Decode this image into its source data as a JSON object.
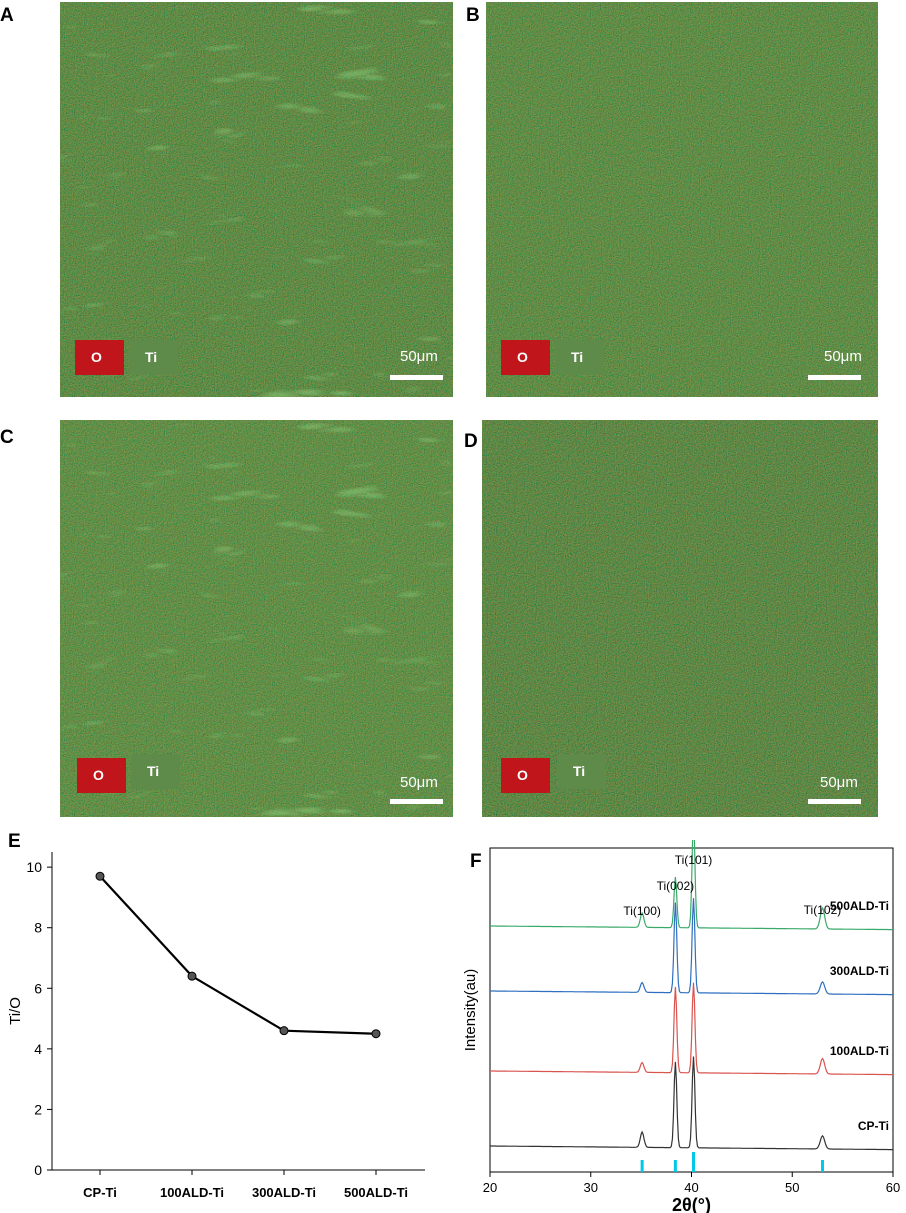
{
  "panels": {
    "A": {
      "letter": "A",
      "legend_o": "O",
      "legend_ti": "Ti",
      "scale": "50μm"
    },
    "B": {
      "letter": "B",
      "legend_o": "O",
      "legend_ti": "Ti",
      "scale": "50μm"
    },
    "C": {
      "letter": "C",
      "legend_o": "O",
      "legend_ti": "Ti",
      "scale": "50μm"
    },
    "D": {
      "letter": "D",
      "legend_o": "O",
      "legend_ti": "Ti",
      "scale": "50μm"
    },
    "E": {
      "letter": "E"
    },
    "F": {
      "letter": "F"
    }
  },
  "colors": {
    "oxygen": "#c0161b",
    "titanium": "#5e8a4a",
    "map_base": "#2f6a22",
    "cp_ti": "#333333",
    "ald100": "#d9534f",
    "ald300": "#2f6fbf",
    "ald500": "#3aaa6a",
    "reference": "#00c8e8"
  },
  "chart_data": [
    {
      "type": "line",
      "categories": [
        "CP-Ti",
        "100ALD-Ti",
        "300ALD-Ti",
        "500ALD-Ti"
      ],
      "values": [
        9.7,
        6.4,
        4.6,
        4.5
      ],
      "ylabel": "Ti/O",
      "xlabel": "",
      "ylim": [
        0,
        10.5
      ],
      "yticks": [
        "0",
        "2",
        "4",
        "6",
        "8",
        "10"
      ],
      "grid": false
    },
    {
      "type": "line",
      "xlabel": "2θ(°)",
      "ylabel": "Intensity(au)",
      "xlim": [
        20,
        60
      ],
      "xticks": [
        "20",
        "30",
        "40",
        "50",
        "60"
      ],
      "series": [
        {
          "name": "CP-Ti",
          "x": [
            20,
            35.1,
            38.4,
            40.2,
            53.0,
            60
          ],
          "rel_peaks": [
            0.14,
            0.78,
            0.83,
            0.12
          ]
        },
        {
          "name": "100ALD-Ti",
          "x": [
            20,
            35.1,
            38.4,
            40.2,
            53.0,
            60
          ],
          "rel_peaks": [
            0.09,
            0.78,
            0.82,
            0.14
          ]
        },
        {
          "name": "300ALD-Ti",
          "x": [
            20,
            35.1,
            38.4,
            40.2,
            53.0,
            60
          ],
          "rel_peaks": [
            0.09,
            0.82,
            0.86,
            0.11
          ]
        },
        {
          "name": "500ALD-Ti",
          "x": [
            20,
            35.1,
            38.4,
            40.2,
            53.0,
            60
          ],
          "rel_peaks": [
            0.13,
            0.46,
            1.0,
            0.19
          ]
        }
      ],
      "peak_labels": [
        {
          "text": "Ti(100)",
          "x": 35.1
        },
        {
          "text": "Ti(002)",
          "x": 38.4
        },
        {
          "text": "Ti(101)",
          "x": 40.2
        },
        {
          "text": "Ti(102)",
          "x": 53.0
        }
      ],
      "reference_lines_x": [
        35.1,
        38.4,
        40.2,
        53.0
      ],
      "legend": "inline-right"
    }
  ]
}
